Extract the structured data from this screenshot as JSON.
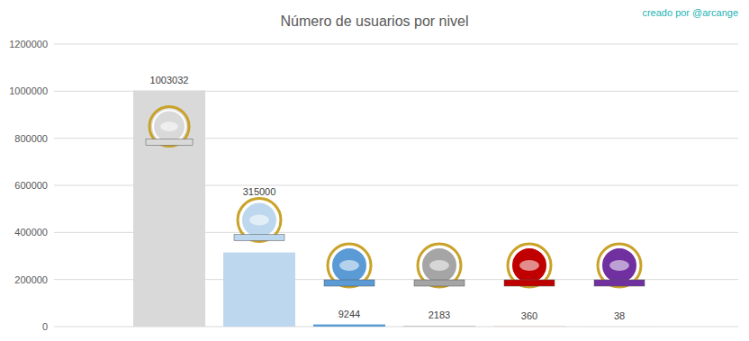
{
  "chart_data": {
    "type": "bar",
    "title": "Número de usuarios por nivel",
    "annotation": "creado por @arcange",
    "categories": [
      null,
      null,
      null,
      null,
      null,
      null
    ],
    "values": [
      1003032,
      315000,
      9244,
      2183,
      360,
      38
    ],
    "colors": [
      "#d9d9d9",
      "#bdd7ee",
      "#5b9bd5",
      "#a5a5a5",
      "#c00000",
      "#7030a0"
    ],
    "ylim": [
      0,
      1200000
    ],
    "yticks": [
      0,
      200000,
      400000,
      600000,
      800000,
      1000000,
      1200000
    ],
    "grid": true,
    "data_labels": true
  }
}
